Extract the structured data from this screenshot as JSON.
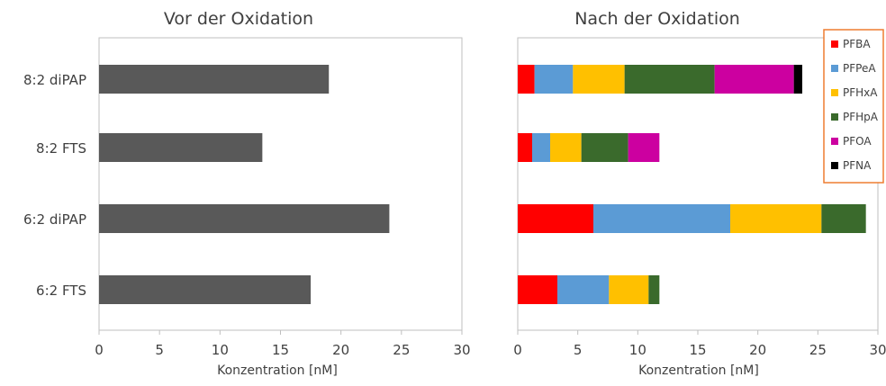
{
  "chart_data": [
    {
      "type": "bar",
      "orientation": "horizontal",
      "title": "Vor der Oxidation",
      "xlabel": "Konzentration [nM]",
      "ylabel": "",
      "xlim": [
        0,
        30
      ],
      "xticks": [
        "0",
        "5",
        "10",
        "15",
        "20",
        "25",
        "30"
      ],
      "categories": [
        "8:2 diPAP",
        "8:2 FTS",
        "6:2 diPAP",
        "6:2 FTS"
      ],
      "values": [
        19.0,
        13.5,
        24.0,
        17.5
      ],
      "color": "#595959",
      "grid": false
    },
    {
      "type": "bar",
      "orientation": "horizontal",
      "stacked": true,
      "title": "Nach der Oxidation",
      "xlabel": "Konzentration [nM]",
      "ylabel": "",
      "xlim": [
        0,
        30
      ],
      "xticks": [
        "0",
        "5",
        "10",
        "15",
        "20",
        "25",
        "30"
      ],
      "categories": [
        "8:2 diPAP",
        "8:2 FTS",
        "6:2 diPAP",
        "6:2 FTS"
      ],
      "legend_position": "top-right",
      "grid": false,
      "series": [
        {
          "name": "PFBA",
          "color": "#ff0000",
          "values": [
            1.4,
            1.2,
            6.3,
            3.3
          ]
        },
        {
          "name": "PFPeA",
          "color": "#5b9bd5",
          "values": [
            3.2,
            1.5,
            11.4,
            4.3
          ]
        },
        {
          "name": "PFHxA",
          "color": "#ffc000",
          "values": [
            4.3,
            2.6,
            7.6,
            3.3
          ]
        },
        {
          "name": "PFHpA",
          "color": "#3a6a2c",
          "values": [
            7.5,
            3.9,
            3.7,
            0.9
          ]
        },
        {
          "name": "PFOA",
          "color": "#cc00a0",
          "values": [
            6.6,
            2.6,
            0,
            0
          ]
        },
        {
          "name": "PFNA",
          "color": "#000000",
          "values": [
            0.7,
            0,
            0,
            0
          ]
        }
      ]
    }
  ]
}
